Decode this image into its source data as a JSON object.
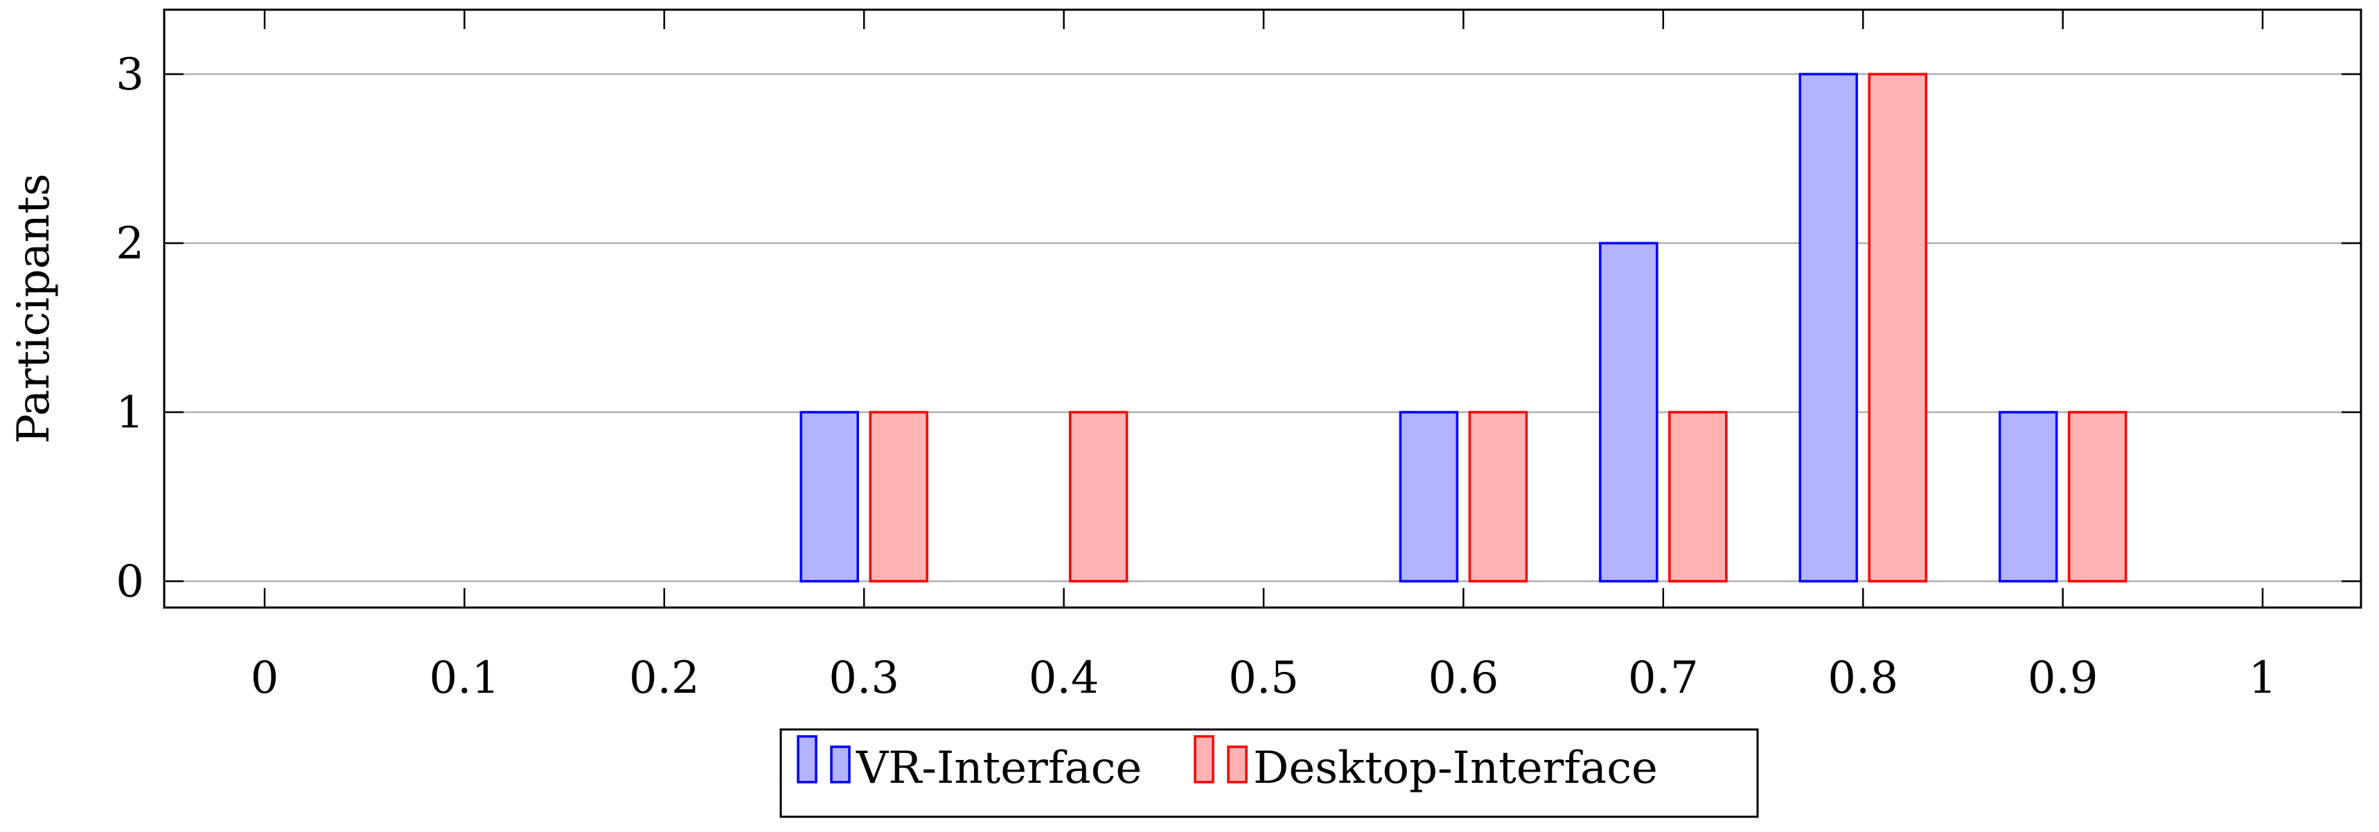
{
  "chart_data": {
    "type": "bar",
    "categories": [
      "0",
      "0.1",
      "0.2",
      "0.3",
      "0.4",
      "0.5",
      "0.6",
      "0.7",
      "0.8",
      "0.9",
      "1"
    ],
    "x": [
      0,
      0.1,
      0.2,
      0.3,
      0.4,
      0.5,
      0.6,
      0.7,
      0.8,
      0.9,
      1
    ],
    "series": [
      {
        "name": "VR-Interface",
        "values": [
          0,
          0,
          0,
          1,
          0,
          0,
          1,
          2,
          3,
          1,
          0
        ],
        "stroke": "#0000ff",
        "fill": "#b3b3ff"
      },
      {
        "name": "Desktop-Interface",
        "values": [
          0,
          0,
          0,
          1,
          1,
          0,
          1,
          1,
          3,
          1,
          0
        ],
        "stroke": "#ff0000",
        "fill": "#ffb3b3"
      }
    ],
    "ylabel": "Participants",
    "xlabel": "",
    "ylim": [
      0,
      3
    ],
    "yticks": [
      "0",
      "1",
      "2",
      "3"
    ],
    "grid": "horizontal",
    "legend_position": "bottom-center"
  }
}
